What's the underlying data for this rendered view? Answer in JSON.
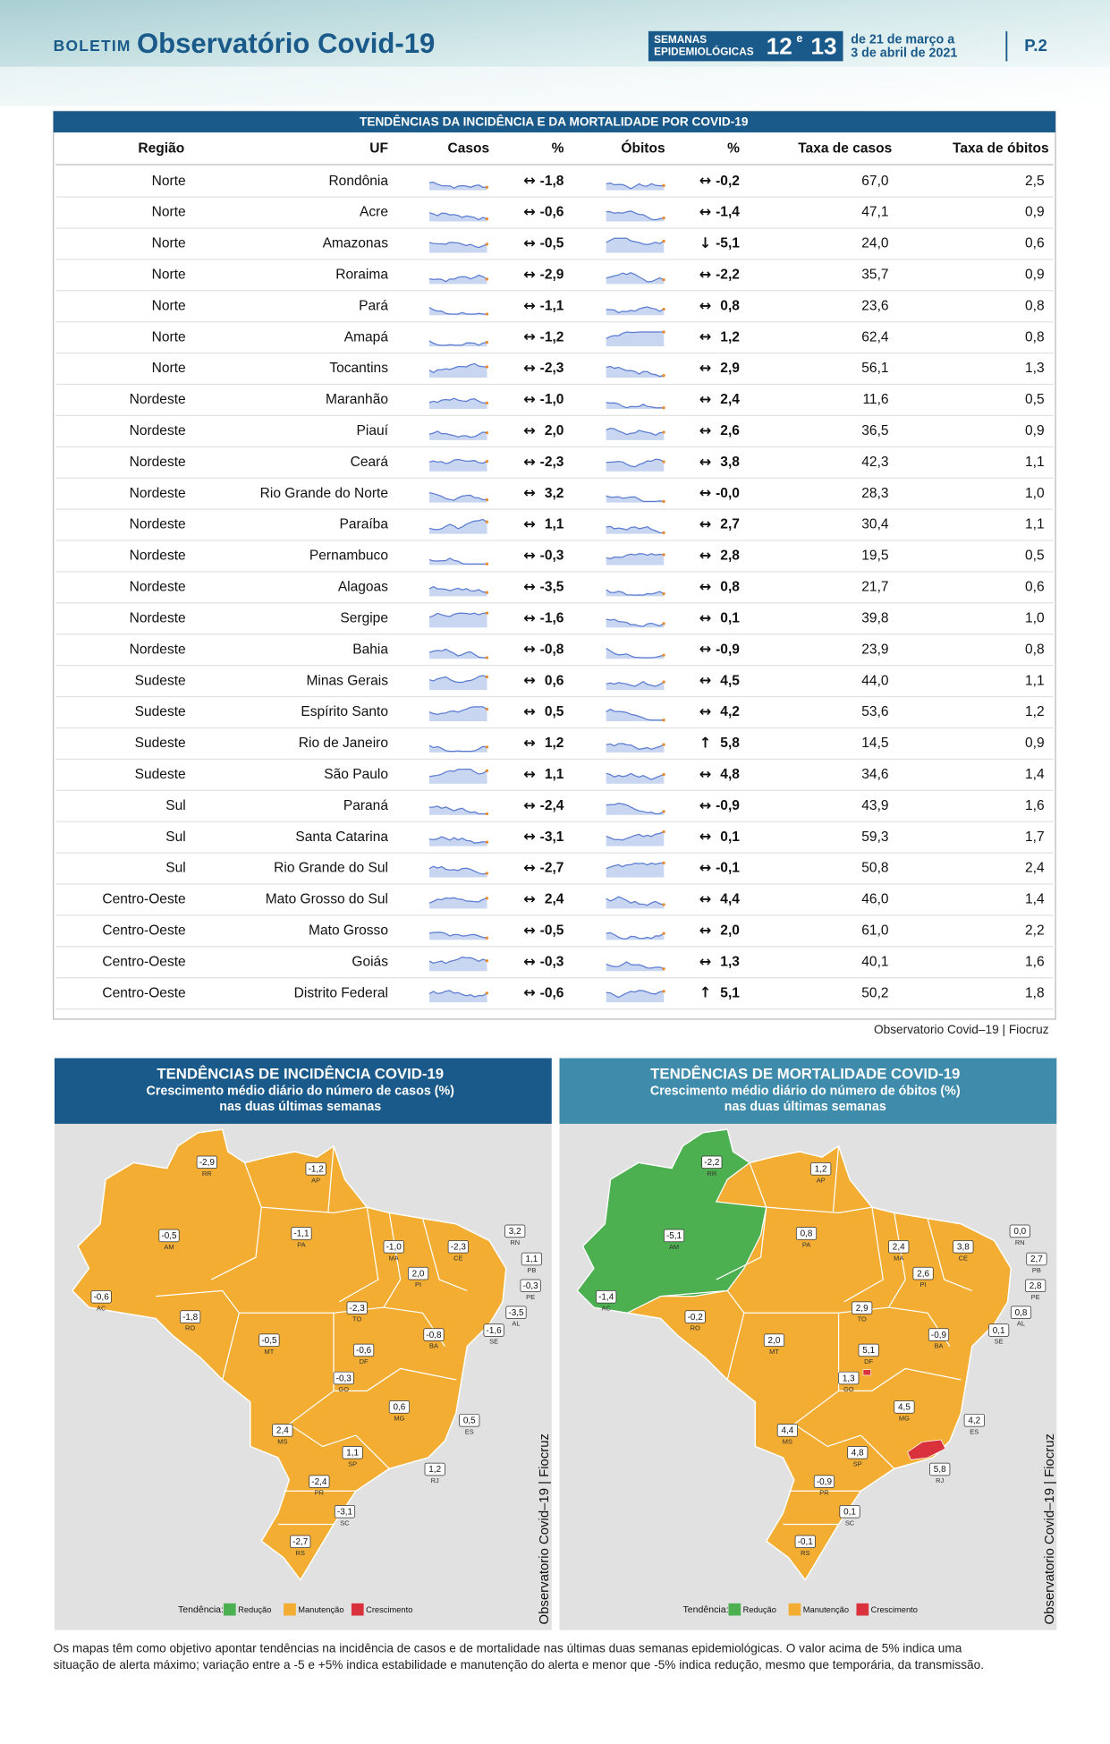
{
  "header": {
    "boletim": "BOLETIM",
    "title": "Observatório Covid-19",
    "semanas": "SEMANAS",
    "epidemiologicas": "EPIDEMIOLÓGICAS",
    "week_a": "12",
    "e": "e",
    "week_b": "13",
    "date_line1": "de 21 de março a",
    "date_line2": "3 de abril de 2021",
    "page": "P.2"
  },
  "table": {
    "title": "TENDÊNCIAS DA INCIDÊNCIA E DA MORTALIDADE POR COVID-19",
    "columns": [
      "Região",
      "UF",
      "Casos",
      "%",
      "Óbitos",
      "%",
      "Taxa de casos",
      "Taxa de óbitos"
    ],
    "rows": [
      [
        "Norte",
        "Rondônia",
        "↔",
        "-1,8",
        "↔",
        "-0,2",
        "67,0",
        "2,5"
      ],
      [
        "Norte",
        "Acre",
        "↔",
        "-0,6",
        "↔",
        "-1,4",
        "47,1",
        "0,9"
      ],
      [
        "Norte",
        "Amazonas",
        "↔",
        "-0,5",
        "↓",
        "-5,1",
        "24,0",
        "0,6"
      ],
      [
        "Norte",
        "Roraima",
        "↔",
        "-2,9",
        "↔",
        "-2,2",
        "35,7",
        "0,9"
      ],
      [
        "Norte",
        "Pará",
        "↔",
        "-1,1",
        "↔",
        "0,8",
        "23,6",
        "0,8"
      ],
      [
        "Norte",
        "Amapá",
        "↔",
        "-1,2",
        "↔",
        "1,2",
        "62,4",
        "0,8"
      ],
      [
        "Norte",
        "Tocantins",
        "↔",
        "-2,3",
        "↔",
        "2,9",
        "56,1",
        "1,3"
      ],
      [
        "Nordeste",
        "Maranhão",
        "↔",
        "-1,0",
        "↔",
        "2,4",
        "11,6",
        "0,5"
      ],
      [
        "Nordeste",
        "Piauí",
        "↔",
        "2,0",
        "↔",
        "2,6",
        "36,5",
        "0,9"
      ],
      [
        "Nordeste",
        "Ceará",
        "↔",
        "-2,3",
        "↔",
        "3,8",
        "42,3",
        "1,1"
      ],
      [
        "Nordeste",
        "Rio Grande do Norte",
        "↔",
        "3,2",
        "↔",
        "-0,0",
        "28,3",
        "1,0"
      ],
      [
        "Nordeste",
        "Paraíba",
        "↔",
        "1,1",
        "↔",
        "2,7",
        "30,4",
        "1,1"
      ],
      [
        "Nordeste",
        "Pernambuco",
        "↔",
        "-0,3",
        "↔",
        "2,8",
        "19,5",
        "0,5"
      ],
      [
        "Nordeste",
        "Alagoas",
        "↔",
        "-3,5",
        "↔",
        "0,8",
        "21,7",
        "0,6"
      ],
      [
        "Nordeste",
        "Sergipe",
        "↔",
        "-1,6",
        "↔",
        "0,1",
        "39,8",
        "1,0"
      ],
      [
        "Nordeste",
        "Bahia",
        "↔",
        "-0,8",
        "↔",
        "-0,9",
        "23,9",
        "0,8"
      ],
      [
        "Sudeste",
        "Minas Gerais",
        "↔",
        "0,6",
        "↔",
        "4,5",
        "44,0",
        "1,1"
      ],
      [
        "Sudeste",
        "Espírito Santo",
        "↔",
        "0,5",
        "↔",
        "4,2",
        "53,6",
        "1,2"
      ],
      [
        "Sudeste",
        "Rio de Janeiro",
        "↔",
        "1,2",
        "↑",
        "5,8",
        "14,5",
        "0,9"
      ],
      [
        "Sudeste",
        "São Paulo",
        "↔",
        "1,1",
        "↔",
        "4,8",
        "34,6",
        "1,4"
      ],
      [
        "Sul",
        "Paraná",
        "↔",
        "-2,4",
        "↔",
        "-0,9",
        "43,9",
        "1,6"
      ],
      [
        "Sul",
        "Santa Catarina",
        "↔",
        "-3,1",
        "↔",
        "0,1",
        "59,3",
        "1,7"
      ],
      [
        "Sul",
        "Rio Grande do Sul",
        "↔",
        "-2,7",
        "↔",
        "-0,1",
        "50,8",
        "2,4"
      ],
      [
        "Centro-Oeste",
        "Mato Grosso do Sul",
        "↔",
        "2,4",
        "↔",
        "4,4",
        "46,0",
        "1,4"
      ],
      [
        "Centro-Oeste",
        "Mato Grosso",
        "↔",
        "-0,5",
        "↔",
        "2,0",
        "61,0",
        "2,2"
      ],
      [
        "Centro-Oeste",
        "Goiás",
        "↔",
        "-0,3",
        "↔",
        "1,3",
        "40,1",
        "1,6"
      ],
      [
        "Centro-Oeste",
        "Distrito Federal",
        "↔",
        "-0,6",
        "↑",
        "5,1",
        "50,2",
        "1,8"
      ]
    ],
    "source": "Observatorio Covid–19 | Fiocruz"
  },
  "maps": [
    {
      "title": "TENDÊNCIAS DE INCIDÊNCIA COVID-19",
      "subtitle1": "Crescimento médio diário do número de casos (%)",
      "subtitle2": "nas duas últimas semanas",
      "side": "Observatorio Covid–19 | Fiocruz",
      "labels": [
        {
          "uf": "RR",
          "value": "-2,9"
        },
        {
          "uf": "AP",
          "value": "-1,2"
        },
        {
          "uf": "AM",
          "value": "-0,5"
        },
        {
          "uf": "PA",
          "value": "-1,1"
        },
        {
          "uf": "MA",
          "value": "-1,0"
        },
        {
          "uf": "CE",
          "value": "-2,3"
        },
        {
          "uf": "RN",
          "value": "3,2"
        },
        {
          "uf": "PB",
          "value": "1,1"
        },
        {
          "uf": "PE",
          "value": "-0,3"
        },
        {
          "uf": "AL",
          "value": "-3,5"
        },
        {
          "uf": "SE",
          "value": "-1,6"
        },
        {
          "uf": "PI",
          "value": "2,0"
        },
        {
          "uf": "AC",
          "value": "-0,6"
        },
        {
          "uf": "RO",
          "value": "-1,8"
        },
        {
          "uf": "TO",
          "value": "-2,3"
        },
        {
          "uf": "MT",
          "value": "-0,5"
        },
        {
          "uf": "BA",
          "value": "-0,8"
        },
        {
          "uf": "DF",
          "value": "-0,6"
        },
        {
          "uf": "GO",
          "value": "-0,3"
        },
        {
          "uf": "MG",
          "value": "0,6"
        },
        {
          "uf": "ES",
          "value": "0,5"
        },
        {
          "uf": "MS",
          "value": "2,4"
        },
        {
          "uf": "SP",
          "value": "1,1"
        },
        {
          "uf": "RJ",
          "value": "1,2"
        },
        {
          "uf": "PR",
          "value": "-2,4"
        },
        {
          "uf": "SC",
          "value": "-3,1"
        },
        {
          "uf": "RS",
          "value": "-2,7"
        }
      ]
    },
    {
      "title": "TENDÊNCIAS DE MORTALIDADE COVID-19",
      "subtitle1": "Crescimento médio diário do número de óbitos (%)",
      "subtitle2": "nas duas últimas semanas",
      "side": "Observatorio Covid–19 | Fiocruz",
      "labels": [
        {
          "uf": "RR",
          "value": "-2,2"
        },
        {
          "uf": "AP",
          "value": "1,2"
        },
        {
          "uf": "AM",
          "value": "-5,1"
        },
        {
          "uf": "PA",
          "value": "0,8"
        },
        {
          "uf": "MA",
          "value": "2,4"
        },
        {
          "uf": "CE",
          "value": "3,8"
        },
        {
          "uf": "RN",
          "value": "0,0"
        },
        {
          "uf": "PB",
          "value": "2,7"
        },
        {
          "uf": "PE",
          "value": "2,8"
        },
        {
          "uf": "AL",
          "value": "0,8"
        },
        {
          "uf": "SE",
          "value": "0,1"
        },
        {
          "uf": "PI",
          "value": "2,6"
        },
        {
          "uf": "AC",
          "value": "-1,4"
        },
        {
          "uf": "RO",
          "value": "-0,2"
        },
        {
          "uf": "TO",
          "value": "2,9"
        },
        {
          "uf": "MT",
          "value": "2,0"
        },
        {
          "uf": "BA",
          "value": "-0,9"
        },
        {
          "uf": "DF",
          "value": "5,1"
        },
        {
          "uf": "GO",
          "value": "1,3"
        },
        {
          "uf": "MG",
          "value": "4,5"
        },
        {
          "uf": "ES",
          "value": "4,2"
        },
        {
          "uf": "MS",
          "value": "4,4"
        },
        {
          "uf": "SP",
          "value": "4,8"
        },
        {
          "uf": "RJ",
          "value": "5,8"
        },
        {
          "uf": "PR",
          "value": "-0,9"
        },
        {
          "uf": "SC",
          "value": "0,1"
        },
        {
          "uf": "RS",
          "value": "-0,1"
        }
      ]
    }
  ],
  "legend": {
    "label": "Tendência:",
    "items": [
      {
        "name": "Redução",
        "color": "#4caf50"
      },
      {
        "name": "Manutenção",
        "color": "#f2ad32"
      },
      {
        "name": "Crescimento",
        "color": "#d9323c"
      }
    ]
  },
  "footnote": {
    "line1": "Os mapas têm como objetivo apontar tendências na incidência de casos e de mortalidade nas últimas duas semanas epidemiológicas. O valor acima de 5% indica uma",
    "line2": "situação de alerta máximo; variação entre a -5 e +5% indica estabilidade e manutenção do alerta e menor que -5% indica redução, mesmo que temporária, da transmissão."
  }
}
